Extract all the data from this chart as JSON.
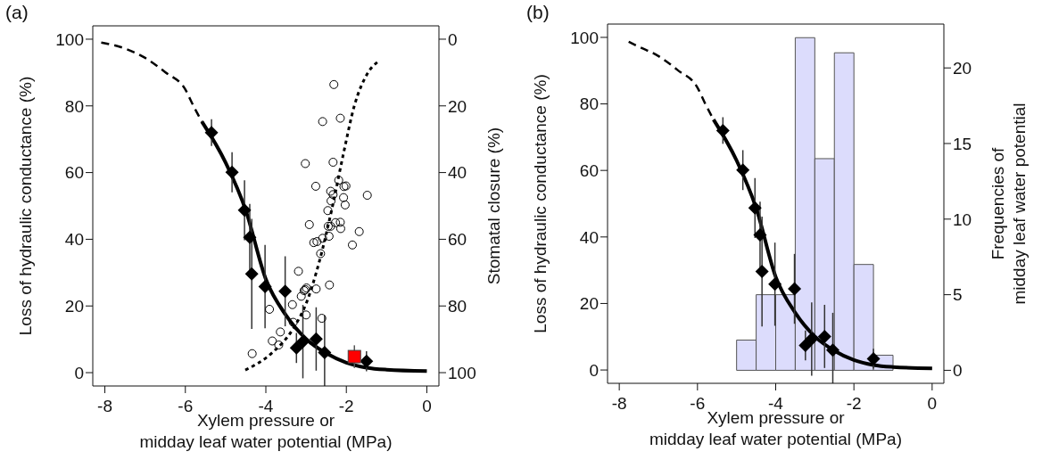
{
  "chart_data": [
    {
      "type": "scatter",
      "title": "(a)",
      "xlabel": "Xylem pressure or\nmidday leaf water potential (MPa)",
      "ylabel": "Loss of hydraulic conductance (%)",
      "y2label": "Stomatal closure (%)",
      "xlim": [
        -8.3,
        0.3
      ],
      "xticks": [
        -8,
        -6,
        -4,
        -2,
        0
      ],
      "ylim": [
        -4,
        104
      ],
      "yticks": [
        0,
        20,
        40,
        60,
        80,
        100
      ],
      "y2lim": [
        104,
        -4
      ],
      "y2ticks": [
        0,
        20,
        40,
        60,
        80,
        100
      ],
      "series": [
        {
          "type": "line",
          "line_style": "dashed",
          "color": "#000000",
          "x": [
            -8.09,
            -7.5,
            -7,
            -6.5,
            -6,
            -5.8,
            -5.59
          ],
          "values": [
            99,
            97.2,
            94.4,
            90.1,
            84.9,
            80,
            75.3
          ]
        },
        {
          "type": "line",
          "line_style": "solid",
          "color": "#000000",
          "x": [
            -5.59,
            -5,
            -4.5,
            -4,
            -3.5,
            -3,
            -2.5,
            -2,
            -1.5,
            -1,
            0
          ],
          "values": [
            75.3,
            63,
            48.7,
            28,
            17.2,
            10.1,
            5.8,
            3,
            1.5,
            0.9,
            0.5
          ]
        },
        {
          "marker": "circle",
          "axis": "y2",
          "color": "#000000",
          "x": [
            -2.31,
            -2.59,
            -2.15,
            -3.02,
            -2.33,
            -2.76,
            -2.19,
            -2.06,
            -2.01,
            -2.39,
            -2.33,
            -2.38,
            -2.07,
            -2.03,
            -1.48,
            -2.46,
            -2.92,
            -2.45,
            -2.39,
            -2.27,
            -2.15,
            -2.14,
            -1.68,
            -2.81,
            -2.73,
            -2.59,
            -2.43,
            -1.85,
            -2.64,
            -3.19,
            -2.42,
            -2.75,
            -3.02,
            -2.99,
            -3.05,
            -3.12,
            -3.34,
            -3.91,
            -3.0,
            -3.32,
            -2.61,
            -3.64,
            -3.84,
            -3.68,
            -4.34
          ],
          "values": [
            13.6,
            24.7,
            23.7,
            37.3,
            36.9,
            44.1,
            42.3,
            44.2,
            44.0,
            45.6,
            46.6,
            48.5,
            47.5,
            49.7,
            46.8,
            51.4,
            55.6,
            56.1,
            56.1,
            55.0,
            54.9,
            56.8,
            57.7,
            61.0,
            60.7,
            59.7,
            59.1,
            61.7,
            64.3,
            69.6,
            73.7,
            74.9,
            75.1,
            74.6,
            75.4,
            77.1,
            79.6,
            81.0,
            82.7,
            84.9,
            83.7,
            87.8,
            90.5,
            91.7,
            94.3
          ]
        },
        {
          "type": "line",
          "line_style": "dotted",
          "axis": "y2",
          "color": "#000000",
          "x": [
            -4.51,
            -3.86,
            -3.31,
            -2.99,
            -2.67,
            -2.35,
            -2.07,
            -1.8,
            -1.48,
            -1.2
          ],
          "values": [
            99.2,
            94.2,
            86.6,
            79,
            66.6,
            50.4,
            34.2,
            19.9,
            10.4,
            6.6
          ]
        },
        {
          "marker": "diamond",
          "color": "#000000",
          "x": [
            -5.35,
            -4.84,
            -4.53,
            -4.4,
            -4.35,
            -4.02,
            -3.52,
            -3.24,
            -3.08,
            -2.75,
            -2.54,
            -1.5
          ],
          "values": [
            72,
            60.1,
            48.7,
            40.6,
            29.6,
            25.8,
            24.4,
            7.4,
            9.3,
            10.1,
            6,
            3.4
          ],
          "errors": [
            4,
            6,
            9,
            10,
            16.5,
            12.5,
            10.5,
            4.5,
            11,
            9.5,
            [
              -4,
              17.2
            ],
            3
          ]
        },
        {
          "marker": "square",
          "color": "#ff0000",
          "x": [
            -1.8
          ],
          "values": [
            4.8
          ],
          "errors": [
            3.4
          ]
        }
      ]
    },
    {
      "type": "scatter",
      "title": "(b)",
      "xlabel": "Xylem pressure or\nmidday leaf water potential (MPa)",
      "ylabel": "Loss of hydraulic conductance (%)",
      "y2label": "Frequencies of\nmidday leaf water potential",
      "xlim": [
        -8.3,
        0.3
      ],
      "xticks": [
        -8,
        -6,
        -4,
        -2,
        0
      ],
      "ylim": [
        -4,
        104
      ],
      "yticks": [
        0,
        20,
        40,
        60,
        80,
        100
      ],
      "y2lim": [
        -0.86,
        22.9
      ],
      "y2ticks": [
        0,
        5,
        10,
        15,
        20
      ],
      "series": [
        {
          "type": "histogram",
          "axis": "y2",
          "color": "#dcdcfc",
          "bins": [
            -5,
            -4.5,
            -4,
            -3.5,
            -3,
            -2.5,
            -2,
            -1.5,
            -1
          ],
          "values": [
            2,
            5,
            5,
            22,
            14,
            21,
            7,
            1
          ]
        },
        {
          "type": "line",
          "line_style": "dashed",
          "color": "#000000",
          "x": [
            -7.76,
            -7.5,
            -7,
            -6.5,
            -6,
            -5.8,
            -5.59
          ],
          "values": [
            98.7,
            97.2,
            94.4,
            90.1,
            84.9,
            80,
            75.3
          ]
        },
        {
          "type": "line",
          "line_style": "solid",
          "color": "#000000",
          "x": [
            -5.59,
            -5,
            -4.5,
            -4,
            -3.5,
            -3,
            -2.5,
            -2,
            -1.5,
            -1,
            0
          ],
          "values": [
            75.3,
            63,
            48.7,
            28,
            17.2,
            10.1,
            5.8,
            3,
            1.5,
            0.9,
            0.5
          ]
        },
        {
          "marker": "diamond",
          "color": "#000000",
          "x": [
            -5.35,
            -4.84,
            -4.53,
            -4.4,
            -4.35,
            -4.02,
            -3.52,
            -3.24,
            -3.08,
            -2.75,
            -2.54,
            -1.5
          ],
          "values": [
            72,
            60.1,
            48.7,
            40.6,
            29.6,
            25.8,
            24.4,
            7.4,
            9.3,
            10.1,
            6,
            3.4
          ],
          "errors": [
            4,
            6,
            9,
            10,
            16.5,
            12.5,
            10.5,
            4.5,
            11,
            9.5,
            [
              -4,
              17.2
            ],
            3
          ]
        }
      ]
    }
  ]
}
